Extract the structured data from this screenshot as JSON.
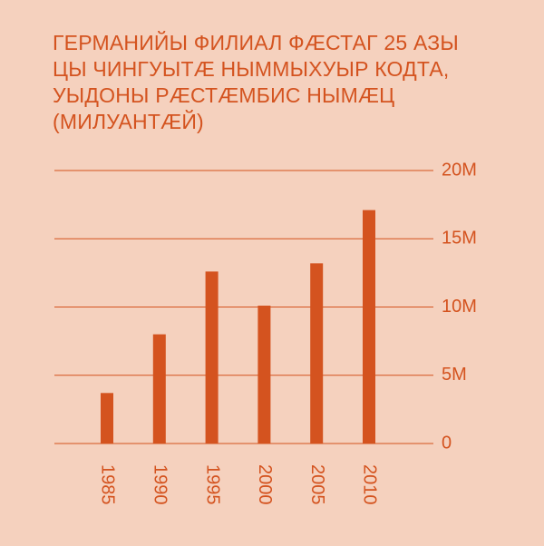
{
  "chart_data": {
    "type": "bar",
    "title": "ГЕРМАНИЙЫ ФИЛИАЛ ФÆСТАГ 25 АЗЫ ЦЫ ЧИНГУЫТÆ НЫММЫХУЫР КОДТА, УЫДОНЫ РÆСТÆМБИС НЫМÆЦ (МИЛУАНТÆЙ)",
    "categories": [
      "1985",
      "1990",
      "1995",
      "2000",
      "2005",
      "2010"
    ],
    "values": [
      3.7,
      8.0,
      12.6,
      10.1,
      13.2,
      17.1
    ],
    "color": "#d4531f",
    "ylim": [
      0,
      20
    ],
    "yticks": [
      0,
      {
        "value": 5,
        "label": "5M"
      },
      {
        "value": 10,
        "label": "10M"
      },
      {
        "value": 15,
        "label": "15M"
      },
      {
        "value": 20,
        "label": "20M"
      }
    ],
    "grid": true
  }
}
